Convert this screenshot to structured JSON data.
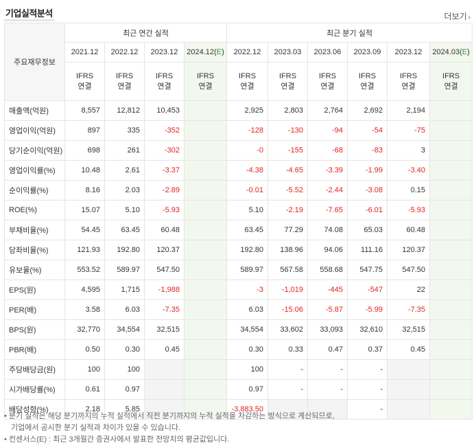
{
  "header": {
    "title": "기업실적분석",
    "more_label": "더보기",
    "more_icon": "chevron-right-icon"
  },
  "table": {
    "row_header_label": "주요재무정보",
    "groups": {
      "annual": "최근 연간 실적",
      "quarterly": "최근 분기 실적"
    },
    "periods": [
      "2021.12",
      "2022.12",
      "2023.12",
      "2024.12(E)",
      "2022.12",
      "2023.03",
      "2023.06",
      "2023.09",
      "2023.12",
      "2024.03(E)"
    ],
    "ifrs": "IFRS",
    "consolidated": "연결",
    "rows": [
      {
        "label": "매출액(억원)",
        "values": [
          "8,557",
          "12,812",
          "10,453",
          "",
          "2,925",
          "2,803",
          "2,764",
          "2,692",
          "2,194",
          ""
        ]
      },
      {
        "label": "영업이익(억원)",
        "values": [
          "897",
          "335",
          "-352",
          "",
          "-128",
          "-130",
          "-94",
          "-54",
          "-75",
          ""
        ]
      },
      {
        "label": "당기순이익(억원)",
        "values": [
          "698",
          "261",
          "-302",
          "",
          "-0",
          "-155",
          "-68",
          "-83",
          "3",
          ""
        ]
      },
      {
        "label": "영업이익률(%)",
        "values": [
          "10.48",
          "2.61",
          "-3.37",
          "",
          "-4.38",
          "-4.65",
          "-3.39",
          "-1.99",
          "-3.40",
          ""
        ]
      },
      {
        "label": "순이익률(%)",
        "values": [
          "8.16",
          "2.03",
          "-2.89",
          "",
          "-0.01",
          "-5.52",
          "-2.44",
          "-3.08",
          "0.15",
          ""
        ]
      },
      {
        "label": "ROE(%)",
        "values": [
          "15.07",
          "5.10",
          "-5.93",
          "",
          "5.10",
          "-2.19",
          "-7.65",
          "-6.01",
          "-5.93",
          ""
        ]
      },
      {
        "label": "부채비율(%)",
        "values": [
          "54.45",
          "63.45",
          "60.48",
          "",
          "63.45",
          "77.29",
          "74.08",
          "65.03",
          "60.48",
          ""
        ]
      },
      {
        "label": "당좌비율(%)",
        "values": [
          "121.93",
          "192.80",
          "120.37",
          "",
          "192.80",
          "138.96",
          "94.06",
          "111.16",
          "120.37",
          ""
        ]
      },
      {
        "label": "유보율(%)",
        "values": [
          "553.52",
          "589.97",
          "547.50",
          "",
          "589.97",
          "567.58",
          "558.68",
          "547.75",
          "547.50",
          ""
        ]
      },
      {
        "label": "EPS(원)",
        "values": [
          "4,595",
          "1,715",
          "-1,988",
          "",
          "-3",
          "-1,019",
          "-445",
          "-547",
          "22",
          ""
        ]
      },
      {
        "label": "PER(배)",
        "values": [
          "3.58",
          "6.03",
          "-7.35",
          "",
          "6.03",
          "-15.06",
          "-5.87",
          "-5.99",
          "-7.35",
          ""
        ]
      },
      {
        "label": "BPS(원)",
        "values": [
          "32,770",
          "34,554",
          "32,515",
          "",
          "34,554",
          "33,602",
          "33,093",
          "32,610",
          "32,515",
          ""
        ]
      },
      {
        "label": "PBR(배)",
        "values": [
          "0.50",
          "0.30",
          "0.45",
          "",
          "0.30",
          "0.33",
          "0.47",
          "0.37",
          "0.45",
          ""
        ]
      },
      {
        "label": "주당배당금(원)",
        "values": [
          "100",
          "100",
          "",
          "",
          "100",
          "-",
          "-",
          "-",
          "",
          ""
        ]
      },
      {
        "label": "시가배당률(%)",
        "values": [
          "0.61",
          "0.97",
          "",
          "",
          "0.97",
          "-",
          "-",
          "-",
          "",
          ""
        ]
      },
      {
        "label": "배당성향(%)",
        "values": [
          "2.18",
          "5.85",
          "",
          "",
          "-3,883.50",
          "",
          "",
          "-",
          "",
          ""
        ]
      }
    ]
  },
  "notes": {
    "line1": "• 분기 실적은 해당 분기까지의 누적 실적에서 직전 분기까지의 누적 실적을 차감하는 방식으로 계산되므로,",
    "line2": "기업에서 공시한 분기 실적과 차이가 있을 수 있습니다.",
    "line3": "• 컨센서스(E) : 최근 3개월간 증권사에서 발표한 전망치의 평균값입니다."
  },
  "colors": {
    "negative": "#e12222",
    "ifrs": "#e8731a",
    "estimate_bg": "#f2f8ed",
    "estimate_text": "#3a9a36"
  }
}
